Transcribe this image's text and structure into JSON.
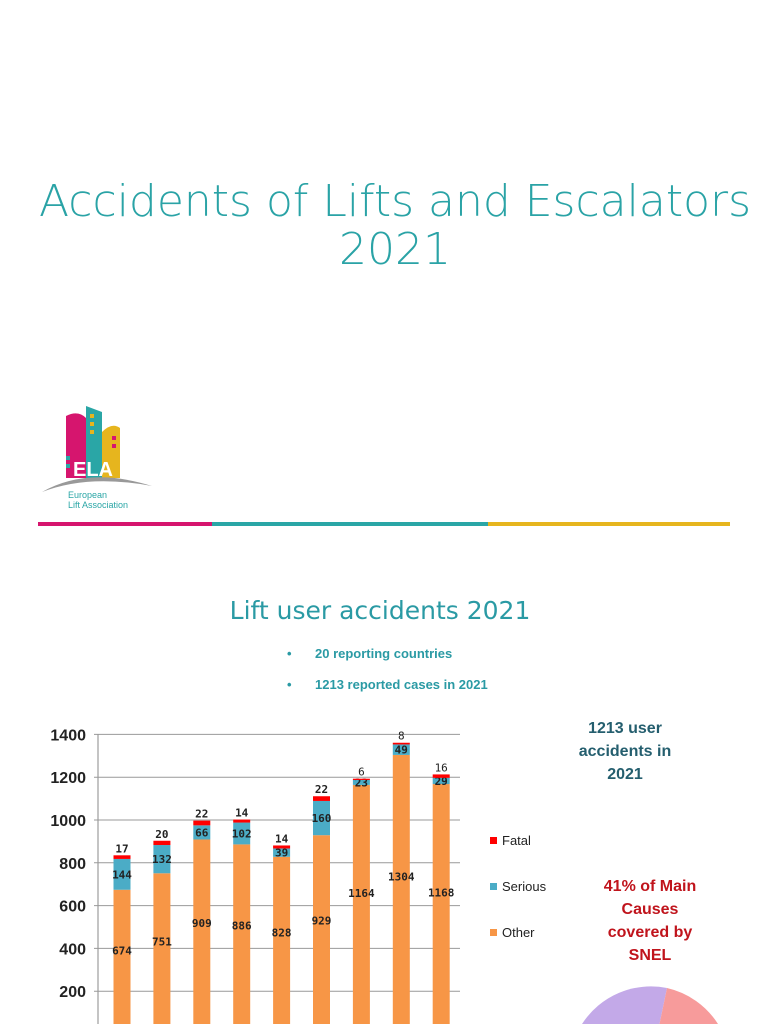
{
  "title": "Accidents of Lifts and Escalators 2021",
  "logo": {
    "text": "ELA",
    "subtitle_line1": "European",
    "subtitle_line2": "Lift Association"
  },
  "divider_colors": [
    "#d6156e",
    "#2aa6a6",
    "#e6b51e"
  ],
  "section_title": "Lift user accidents 2021",
  "bullets": [
    "20 reporting countries",
    "1213 reported cases in 2021"
  ],
  "summary": "1213  user accidents in 2021",
  "snel_note": "41% of Main Causes covered by SNEL",
  "chart_data": {
    "type": "bar",
    "stacked": true,
    "categories": [
      "",
      "",
      "",
      "",
      "",
      "",
      "",
      "",
      ""
    ],
    "series": [
      {
        "name": "Other",
        "color": "#f79646",
        "values": [
          674,
          751,
          909,
          886,
          828,
          929,
          1164,
          1304,
          1168
        ]
      },
      {
        "name": "Serious",
        "color": "#4bacc6",
        "values": [
          144,
          132,
          66,
          102,
          39,
          160,
          23,
          49,
          29
        ]
      },
      {
        "name": "Fatal",
        "color": "#ff0000",
        "values": [
          17,
          20,
          22,
          14,
          14,
          22,
          6,
          8,
          16
        ]
      }
    ],
    "y_ticks": [
      200,
      400,
      600,
      800,
      1000,
      1200,
      1400
    ],
    "ylim": [
      0,
      1400
    ],
    "grid": true,
    "legend_position": "right"
  }
}
